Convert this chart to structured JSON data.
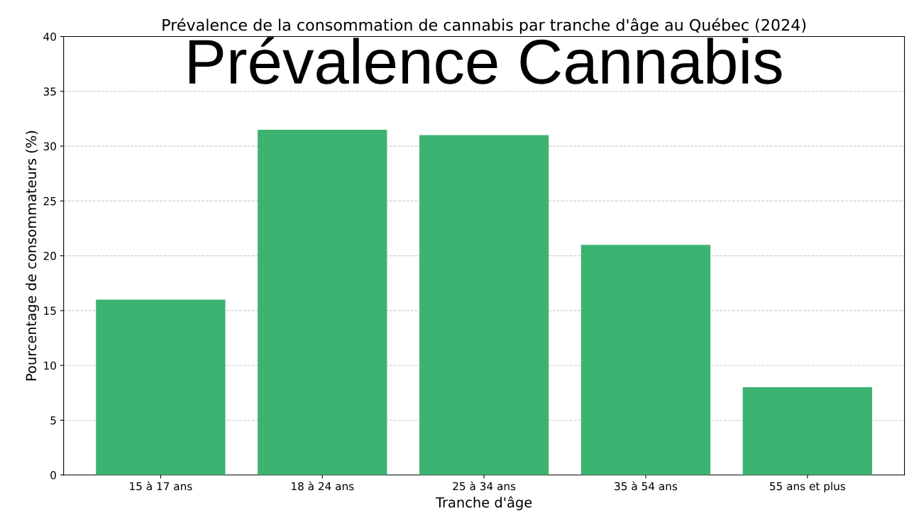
{
  "chart_data": {
    "type": "bar",
    "title": "Prévalence de la consommation de cannabis par tranche d'âge au Québec (2024)",
    "xlabel": "Tranche d'âge",
    "ylabel": "Pourcentage de consommateurs (%)",
    "annotations": [
      "Prévalence Cannabis"
    ],
    "categories": [
      "15 à 17 ans",
      "18 à 24 ans",
      "25 à 34 ans",
      "35 à 54 ans",
      "55 ans et plus"
    ],
    "values": [
      16,
      31.5,
      31,
      21,
      8
    ],
    "color": "#3cb371",
    "ylim": [
      0,
      40
    ],
    "yticks": [
      0,
      5,
      10,
      15,
      20,
      25,
      30,
      35,
      40
    ],
    "grid": "y"
  }
}
